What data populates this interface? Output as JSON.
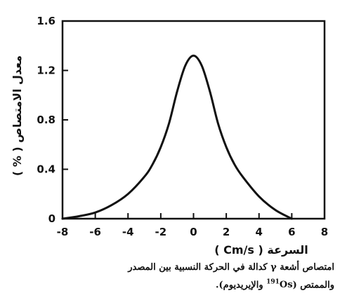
{
  "chart_data": {
    "type": "line",
    "title": "",
    "xlabel": "السرعة ( Cm/s )",
    "ylabel": "معدل الامتصاص ( % )",
    "xlim": [
      -8,
      8
    ],
    "ylim": [
      0,
      1.6
    ],
    "x_ticks": [
      "-8",
      "-6",
      "-4",
      "-2",
      "0",
      "2",
      "4",
      "6",
      "8"
    ],
    "y_ticks": [
      "0",
      "0.4",
      "0.8",
      "1.2",
      "1.6"
    ],
    "grid": false,
    "series": [
      {
        "x": [
          -8,
          -7,
          -6,
          -5,
          -4,
          -3,
          -2.5,
          -2,
          -1.5,
          -1,
          -0.5,
          0,
          0.5,
          1,
          1.5,
          2,
          2.5,
          3,
          4,
          5,
          6
        ],
        "values": [
          0.0,
          0.02,
          0.05,
          0.11,
          0.2,
          0.34,
          0.44,
          0.58,
          0.77,
          1.03,
          1.24,
          1.32,
          1.24,
          1.03,
          0.77,
          0.58,
          0.44,
          0.34,
          0.18,
          0.07,
          0.0
        ]
      }
    ],
    "color": "#111111"
  },
  "caption": {
    "line1": "امتصاص أشعة γ كدالة في الحركة النسبية بين المصدر",
    "line2_prefix": "والممتص (",
    "line2_isotope_mass": "191",
    "line2_isotope_symbol": "Os",
    "line2_suffix": " والإيريديوم)."
  }
}
